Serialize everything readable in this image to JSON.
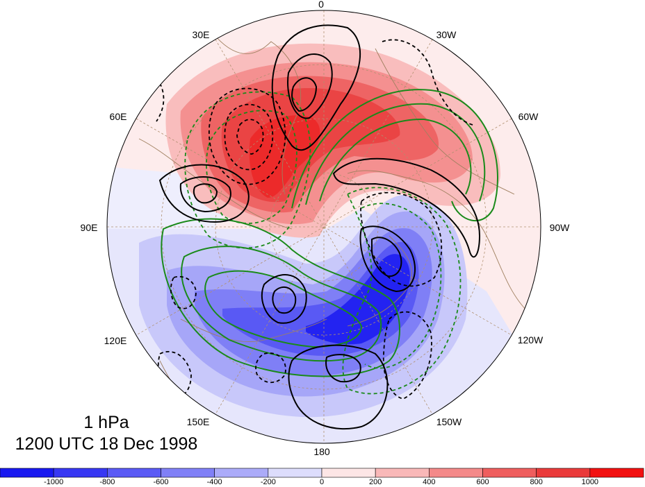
{
  "map": {
    "longitude_labels": [
      "0",
      "30W",
      "60W",
      "90W",
      "120W",
      "150W",
      "180",
      "150E",
      "120E",
      "90E",
      "60E",
      "30E"
    ],
    "level": "1 hPa",
    "valid_time": "1200 UTC 18 Dec 1998"
  },
  "colorbar": {
    "labels": [
      "-1000",
      "-800",
      "-600",
      "-400",
      "-200",
      "0",
      "200",
      "400",
      "600",
      "800",
      "1000"
    ],
    "colors": [
      "#1919f0",
      "#3737f3",
      "#5a5af5",
      "#8080f7",
      "#ababf9",
      "#ddddfc",
      "#fde6e6",
      "#f9b8b8",
      "#f48989",
      "#ef5e5e",
      "#ea3a3a",
      "#f21111"
    ]
  },
  "colors": {
    "positive_contour": "#000000",
    "negative_contour": "#000000",
    "green_contour": "#1a8a1a",
    "coastline": "#a08060",
    "graticule": "#b09070"
  }
}
